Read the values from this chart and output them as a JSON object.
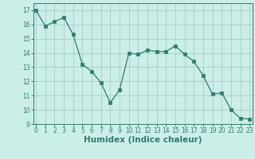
{
  "xlabel": "Humidex (Indice chaleur)",
  "x": [
    0,
    1,
    2,
    3,
    4,
    5,
    6,
    7,
    8,
    9,
    10,
    11,
    12,
    13,
    14,
    15,
    16,
    17,
    18,
    19,
    20,
    21,
    22,
    23
  ],
  "y": [
    17.0,
    15.9,
    16.2,
    16.5,
    15.3,
    13.2,
    12.7,
    11.9,
    10.5,
    11.4,
    14.0,
    13.9,
    14.2,
    14.1,
    14.1,
    14.5,
    13.9,
    13.4,
    12.4,
    11.1,
    11.2,
    10.0,
    9.4,
    9.35
  ],
  "ylim": [
    9,
    17.5
  ],
  "yticks": [
    9,
    10,
    11,
    12,
    13,
    14,
    15,
    16,
    17
  ],
  "xticks": [
    0,
    1,
    2,
    3,
    4,
    5,
    6,
    7,
    8,
    9,
    10,
    11,
    12,
    13,
    14,
    15,
    16,
    17,
    18,
    19,
    20,
    21,
    22,
    23
  ],
  "line_color": "#2d7d6f",
  "marker": "s",
  "marker_size": 2.5,
  "bg_color": "#cceee8",
  "grid_color": "#aaccc6",
  "axes_color": "#2d7d6f",
  "tick_label_fontsize": 5.5,
  "xlabel_fontsize": 7.5
}
